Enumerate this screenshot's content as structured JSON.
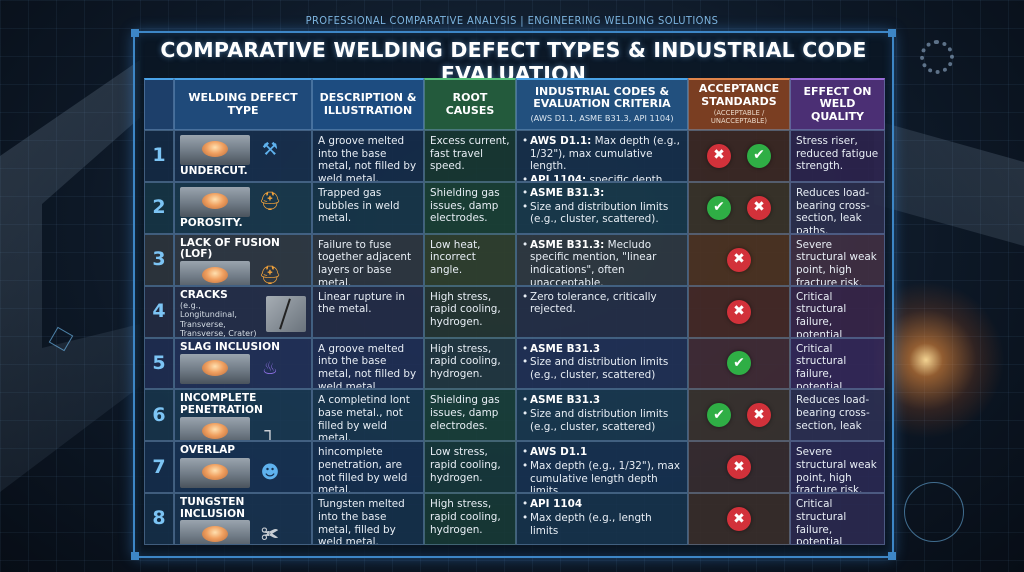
{
  "header_tag": "PROFESSIONAL COMPARATIVE ANALYSIS | ENGINEERING WELDING SOLUTIONS",
  "title": "COMPARATIVE WELDING DEFECT TYPES & INDUSTRIAL CODE EVALUATION",
  "columns": {
    "type": "WELDING DEFECT TYPE",
    "desc": "DESCRIPTION & ILLUSTRATION",
    "root": "ROOT CAUSES",
    "codes": "INDUSTRIAL CODES & EVALUATION CRITERIA",
    "codes_sub": "(AWS D1.1, ASME B31.3, API 1104)",
    "acc": "ACCEPTANCE STANDARDS",
    "acc_sub": "(ACCEPTABLE / UNACCEPTABLE)",
    "effect": "EFFECT ON WELD QUALITY"
  },
  "colors": {
    "accent": "#3d86c6",
    "reject": "#d2313a",
    "accept": "#2fae45"
  },
  "rows": [
    {
      "num": "1",
      "name": "UNDERCUT.",
      "note": "",
      "icon": "wrench-screwdriver-icon",
      "desc": "A groove melted into the base metal, not filled by weld metal.",
      "root": "Excess current, fast travel speed.",
      "codes": [
        {
          "bold": "AWS D1.1:",
          "text": " Max depth (e.g., 1/32\"), max cumulative length."
        },
        {
          "bold": "API 1104:",
          "text": " specific depth and length limits."
        }
      ],
      "acceptance": [
        "x",
        "ok"
      ],
      "effect": "Stress riser, reduced fatigue strength."
    },
    {
      "num": "2",
      "name": "POROSITY.",
      "note": "",
      "icon": "hard-hat-icon",
      "desc": "Trapped gas bubbles in weld metal.",
      "root": "Shielding gas issues, damp electrodes.",
      "codes": [
        {
          "bold": "ASME B31.3:",
          "text": ""
        },
        {
          "bold": "",
          "text": "Size and distribution limits (e.g., cluster, scattered)."
        }
      ],
      "acceptance": [
        "ok",
        "x"
      ],
      "effect": "Reduces load-bearing cross-section, leak paths."
    },
    {
      "num": "3",
      "name": "LACK OF FUSION (LOF)",
      "note": "",
      "icon": "hard-hat-icon",
      "desc": "Failure to fuse together adjacent layers or base metal.",
      "root": "Low heat, incorrect angle.",
      "codes": [
        {
          "bold": "ASME B31.3:",
          "text": " Mecludo specific mention, \"linear indications\", often unacceptable."
        }
      ],
      "acceptance": [
        "x"
      ],
      "effect": "Severe structural weak point, high fracture risk."
    },
    {
      "num": "4",
      "name": "CRACKS",
      "note": "(e.g., Longitundinal, Transverse, Transverse, Crater)",
      "icon": "crack-icon",
      "desc": "Linear rupture in the metal.",
      "root": "High stress, rapid cooling, hydrogen.",
      "codes": [
        {
          "bold": "",
          "text": "Zero tolerance, critically rejected."
        }
      ],
      "acceptance": [
        "x"
      ],
      "effect": "Critical structural failure, potential collapse."
    },
    {
      "num": "5",
      "name": "SLAG INCLUSION",
      "note": "",
      "icon": "slag-icon",
      "desc": "A groove melted into the base metal, not filled by weld metal.",
      "root": "High stress, rapid cooling, hydrogen.",
      "codes": [
        {
          "bold": "ASME B31.3",
          "text": ""
        },
        {
          "bold": "",
          "text": "Size and distribution limits (e.g., cluster, scattered)"
        }
      ],
      "acceptance": [
        "ok"
      ],
      "effect": "Critical structural failure, potential collapse."
    },
    {
      "num": "6",
      "name": "INCOMPLETE PENETRATION",
      "note": "",
      "icon": "joint-icon",
      "desc": "A completind lont base metal., not filled by weld metal.",
      "root": "Shielding gas issues, damp electrodes.",
      "codes": [
        {
          "bold": "ASME B31.3",
          "text": ""
        },
        {
          "bold": "",
          "text": "Size and distribution limits (e.g., cluster, scattered)"
        }
      ],
      "acceptance": [
        "ok",
        "x"
      ],
      "effect": "Reduces load-bearing cross-section, leak"
    },
    {
      "num": "7",
      "name": "OVERLAP",
      "note": "",
      "icon": "inspector-icon",
      "desc": "hincomplete penetration, are not filled by weld metal.",
      "root": "Low stress, rapid cooling, hydrogen.",
      "codes": [
        {
          "bold": "AWS D1.1",
          "text": ""
        },
        {
          "bold": "",
          "text": "Max depth (e.g., 1/32\"), max cumulative length depth limits"
        }
      ],
      "acceptance": [
        "x"
      ],
      "effect": "Severe structural weak point, high fracture risk."
    },
    {
      "num": "8",
      "name": "TUNGSTEN INCLUSION",
      "note": "",
      "icon": "torch-icon",
      "desc": "Tungsten melted into the base metal, filled by weld metal.",
      "root": "High stress, rapid cooling, hydrogen.",
      "codes": [
        {
          "bold": "API 1104",
          "text": ""
        },
        {
          "bold": "",
          "text": "Max depth (e.g., length limits"
        }
      ],
      "acceptance": [
        "x"
      ],
      "effect": "Critical structural failure, potential colapse"
    }
  ]
}
